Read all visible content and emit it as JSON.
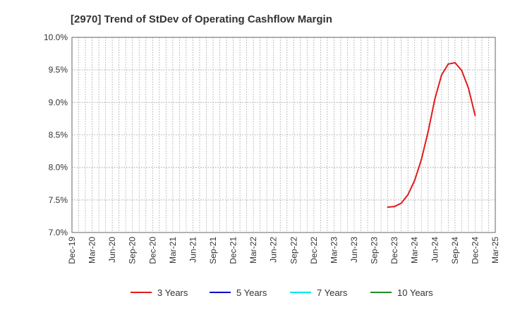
{
  "chart_data": {
    "type": "line",
    "title": "[2970]  Trend of StDev of Operating Cashflow Margin",
    "xlabel": "",
    "ylabel": "",
    "x_tick_labels": [
      "Dec-19",
      "Mar-20",
      "Jun-20",
      "Sep-20",
      "Dec-20",
      "Mar-21",
      "Jun-21",
      "Sep-21",
      "Dec-21",
      "Mar-22",
      "Jun-22",
      "Sep-22",
      "Dec-22",
      "Mar-23",
      "Jun-23",
      "Sep-23",
      "Dec-23",
      "Mar-24",
      "Jun-24",
      "Sep-24",
      "Dec-24",
      "Mar-25"
    ],
    "y_tick_labels": [
      "10.0%",
      "9.5%",
      "9.0%",
      "8.5%",
      "8.0%",
      "7.5%",
      "7.0%"
    ],
    "ylim": [
      7.0,
      10.0
    ],
    "y_unit": "%",
    "grid": true,
    "legend_position": "bottom",
    "series": [
      {
        "name": "3 Years",
        "color": "#e31a1c",
        "points": [
          {
            "x": "Nov-23",
            "y": 7.39
          },
          {
            "x": "Dec-23",
            "y": 7.4
          },
          {
            "x": "Jan-24",
            "y": 7.45
          },
          {
            "x": "Feb-24",
            "y": 7.58
          },
          {
            "x": "Mar-24",
            "y": 7.8
          },
          {
            "x": "Apr-24",
            "y": 8.12
          },
          {
            "x": "May-24",
            "y": 8.55
          },
          {
            "x": "Jun-24",
            "y": 9.05
          },
          {
            "x": "Jul-24",
            "y": 9.42
          },
          {
            "x": "Aug-24",
            "y": 9.59
          },
          {
            "x": "Sep-24",
            "y": 9.61
          },
          {
            "x": "Oct-24",
            "y": 9.49
          },
          {
            "x": "Nov-24",
            "y": 9.22
          },
          {
            "x": "Dec-24",
            "y": 8.8
          }
        ]
      },
      {
        "name": "5 Years",
        "color": "#0000cc",
        "points": []
      },
      {
        "name": "7 Years",
        "color": "#00e5ee",
        "points": []
      },
      {
        "name": "10 Years",
        "color": "#228b22",
        "points": []
      }
    ]
  }
}
